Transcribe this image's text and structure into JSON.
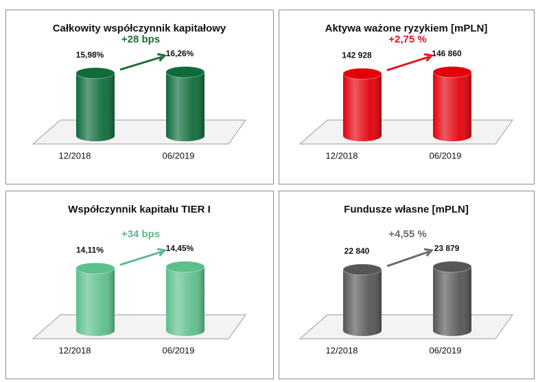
{
  "chart_data": [
    {
      "type": "bar",
      "title": "Całkowity współczynnik kapitałowy",
      "categories": [
        "12/2018",
        "06/2019"
      ],
      "values": [
        15.98,
        16.26
      ],
      "value_labels": [
        "15,98%",
        "16,26%"
      ],
      "annotation": "+28 bps",
      "color": "#0e6b3b",
      "annotation_color": "#1a6e3c"
    },
    {
      "type": "bar",
      "title": "Aktywa ważone ryzykiem [mPLN]",
      "categories": [
        "12/2018",
        "06/2019"
      ],
      "values": [
        142928,
        146860
      ],
      "value_labels": [
        "142 928",
        "146 860"
      ],
      "annotation": "+2,75 %",
      "color": "#e3000b",
      "annotation_color": "#e0141e"
    },
    {
      "type": "bar",
      "title": "Współczynnik kapitału TIER I",
      "categories": [
        "12/2018",
        "06/2019"
      ],
      "values": [
        14.11,
        14.45
      ],
      "value_labels": [
        "14,11%",
        "14,45%"
      ],
      "annotation": "+34 bps",
      "color": "#5dbf8b",
      "annotation_color": "#5cb98a"
    },
    {
      "type": "bar",
      "title": "Fundusze własne [mPLN]",
      "categories": [
        "12/2018",
        "06/2019"
      ],
      "values": [
        22840,
        23879
      ],
      "value_labels": [
        "22 840",
        "23 879"
      ],
      "annotation": "+4,55 %",
      "color": "#565656",
      "annotation_color": "#6b6b6b"
    }
  ]
}
